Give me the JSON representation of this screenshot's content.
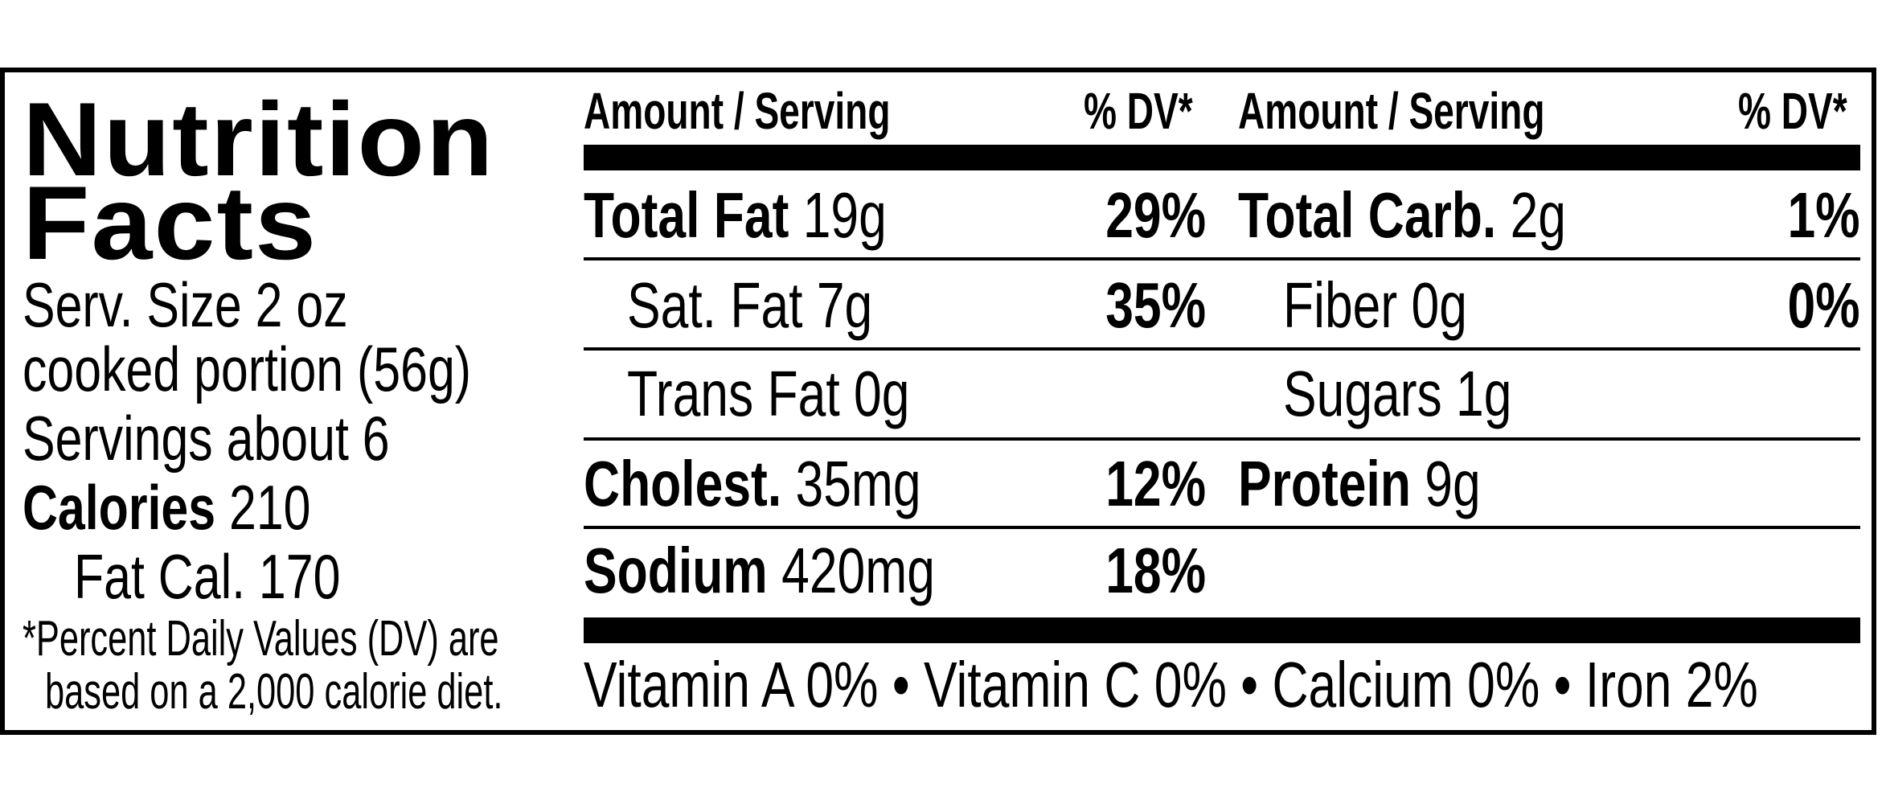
{
  "title": {
    "line1": "Nutrition",
    "line2": "Facts"
  },
  "serving": {
    "size_line1": "Serv. Size 2 oz",
    "size_line2": "cooked portion (56g)",
    "servings": "Servings about 6",
    "calories_label": "Calories",
    "calories_value": "210",
    "fat_cal": "Fat Cal. 170"
  },
  "footnote": {
    "line1": "*Percent Daily Values (DV) are",
    "line2": "based on a 2,000 calorie diet."
  },
  "headers": {
    "amount": "Amount / Serving",
    "dv": "% DV*"
  },
  "left_rows": [
    {
      "label": "Total Fat",
      "amount": "19g",
      "dv": "29%",
      "bold": true,
      "indent": false
    },
    {
      "label": "Sat. Fat",
      "amount": "7g",
      "dv": "35%",
      "bold": false,
      "indent": true
    },
    {
      "label": "Trans Fat",
      "amount": "0g",
      "dv": "",
      "bold": false,
      "indent": true
    },
    {
      "label": "Cholest.",
      "amount": "35mg",
      "dv": "12%",
      "bold": true,
      "indent": false
    },
    {
      "label": "Sodium",
      "amount": "420mg",
      "dv": "18%",
      "bold": true,
      "indent": false
    }
  ],
  "right_rows": [
    {
      "label": "Total Carb.",
      "amount": "2g",
      "dv": "1%",
      "bold": true,
      "indent": false
    },
    {
      "label": "Fiber",
      "amount": "0g",
      "dv": "0%",
      "bold": false,
      "indent": true
    },
    {
      "label": "Sugars",
      "amount": "1g",
      "dv": "",
      "bold": false,
      "indent": true
    },
    {
      "label": "Protein",
      "amount": "9g",
      "dv": "",
      "bold": true,
      "indent": false
    }
  ],
  "vitamins": "Vitamin A 0% • Vitamin C 0% • Calcium 0% • Iron 2%"
}
